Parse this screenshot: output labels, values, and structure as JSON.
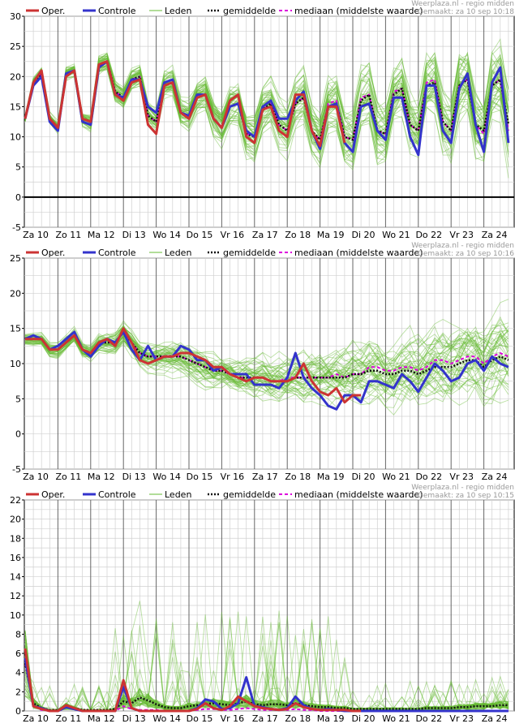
{
  "legend": {
    "oper": "Oper.",
    "controle": "Controle",
    "leden": "Leden",
    "gemiddelde": "gemiddelde",
    "mediaan": "mediaan (middelste waarde)"
  },
  "colors": {
    "oper": "#cc3333",
    "controle": "#3333cc",
    "leden": "#66bb33",
    "gemiddelde": "#111111",
    "mediaan": "#dd00dd",
    "grid": "#d0d0d0",
    "day_line": "#666666"
  },
  "day_labels": [
    "Za 10",
    "Zo 11",
    "Ma 12",
    "Di 13",
    "Wo 14",
    "Do 15",
    "Vr 16",
    "Za 17",
    "Zo 18",
    "Ma 19",
    "Di 20",
    "Wo 21",
    "Do 22",
    "Vr 23",
    "Za 24"
  ],
  "chart_data": [
    {
      "type": "line",
      "credit": "Weerplaza.nl - regio midden",
      "made": "Gemaakt: za 10 sep 10:18",
      "ylim": [
        -5,
        30
      ],
      "yticks": [
        -5,
        0,
        5,
        10,
        15,
        20,
        25,
        30
      ],
      "zero_line": true,
      "series": [
        {
          "key": "oper",
          "values": [
            13,
            19,
            21,
            13,
            11.5,
            20,
            21,
            13,
            12.5,
            22,
            22.5,
            17,
            16,
            19,
            19.5,
            12,
            10.5,
            18.5,
            19,
            14,
            13,
            16.5,
            17,
            13,
            11.5,
            16,
            17,
            10,
            9,
            14.5,
            15,
            11,
            10,
            17,
            17,
            11,
            8.5,
            15,
            15,
            9
          ]
        },
        {
          "key": "controle",
          "values": [
            13,
            18.5,
            20,
            12.5,
            11,
            20.5,
            21,
            12.5,
            12,
            21.5,
            22.5,
            17,
            16.5,
            19.5,
            19.5,
            15,
            14,
            19,
            19.5,
            14,
            13.5,
            17,
            17,
            13,
            11.5,
            15,
            15.5,
            11,
            10,
            15,
            16,
            13,
            13,
            16,
            17.5,
            11,
            8,
            15,
            15.5,
            9,
            7.5,
            15,
            15.5,
            11,
            9.5,
            16.5,
            16.5,
            10,
            7,
            18.5,
            18.5,
            11,
            9,
            18,
            20.5,
            12,
            7.5,
            19,
            21.5,
            9
          ]
        },
        {
          "key": "gemiddelde",
          "values": [
            13,
            19,
            20.5,
            13,
            11.5,
            20.5,
            21,
            13,
            12.5,
            22,
            22.5,
            17.5,
            16.5,
            19.5,
            20,
            13.5,
            12.5,
            18.5,
            19,
            14,
            13.5,
            16.5,
            17,
            13,
            11.5,
            15,
            15.5,
            10.5,
            10,
            14.5,
            15.5,
            12,
            11,
            15.5,
            16.5,
            11,
            9.5,
            15,
            15.5,
            10,
            9.5,
            16,
            17,
            11,
            10.5,
            17,
            18,
            12,
            11,
            18.5,
            19,
            12.5,
            11,
            18.5,
            19.5,
            12,
            11,
            18.5,
            19.5,
            12
          ]
        },
        {
          "key": "mediaan",
          "values": [
            13,
            19,
            20.5,
            13,
            11.5,
            20.5,
            21,
            13,
            12.5,
            22,
            22.5,
            17.5,
            16.5,
            19.5,
            20,
            13.5,
            12.5,
            18.5,
            19,
            14,
            13.5,
            16.5,
            17,
            13,
            11.5,
            15,
            15.5,
            10.5,
            10,
            14.5,
            15.5,
            12,
            11,
            15.5,
            16.5,
            11,
            9.5,
            15.5,
            16,
            10,
            9.5,
            16.5,
            17,
            11,
            10.5,
            17.5,
            18,
            12,
            11,
            19,
            19.5,
            12.5,
            11,
            18.5,
            19.5,
            12,
            10.5,
            18.5,
            19.5,
            11
          ]
        }
      ]
    },
    {
      "type": "line",
      "credit": "Weerplaza.nl - regio midden",
      "made": "Gemaakt: za 10 sep 10:16",
      "ylim": [
        -5,
        25
      ],
      "yticks": [
        -5,
        0,
        5,
        10,
        15,
        20,
        25
      ],
      "zero_line": false,
      "series": [
        {
          "key": "oper",
          "values": [
            13.5,
            13.5,
            13.5,
            12,
            12,
            13,
            14,
            12,
            11.5,
            13,
            13.5,
            12.5,
            15,
            13,
            10.5,
            10,
            10.5,
            11,
            11,
            11.5,
            11.5,
            11,
            10.5,
            9.5,
            9.5,
            8.5,
            8,
            7.5,
            8,
            8,
            7.5,
            7.5,
            7.5,
            8,
            10,
            7.5,
            6,
            5.5,
            6.5,
            4.5,
            5.5,
            5.5
          ]
        },
        {
          "key": "controle",
          "values": [
            13.5,
            14,
            13.5,
            12,
            12.5,
            13.5,
            14.5,
            12,
            11,
            12.5,
            13.5,
            13,
            14.5,
            12,
            10.5,
            12.5,
            10.5,
            11,
            11,
            12.5,
            12,
            10.5,
            10.5,
            9,
            9.5,
            8.5,
            8.5,
            8.5,
            7,
            7,
            7,
            6.5,
            8,
            11.5,
            8,
            6.5,
            5.5,
            4,
            3.5,
            5.5,
            5.5,
            4.5,
            7.5,
            7.5,
            7,
            6.5,
            8.5,
            7.5,
            6,
            8,
            10,
            9,
            7.5,
            8,
            10,
            10.5,
            9,
            11,
            10,
            9.5
          ]
        },
        {
          "key": "gemiddelde",
          "values": [
            13.5,
            13.5,
            13.5,
            12,
            12,
            13,
            14,
            12,
            11.5,
            13,
            13,
            13,
            14.5,
            13,
            11.5,
            11,
            11,
            11,
            11,
            11,
            10.5,
            10,
            9.5,
            9,
            9,
            8.5,
            8,
            8,
            8,
            8,
            7.5,
            7.5,
            7.5,
            8,
            8,
            8,
            8,
            8,
            8,
            8,
            8.5,
            8.5,
            9,
            9,
            8.5,
            8.5,
            9,
            9,
            8.5,
            9,
            9.5,
            9.5,
            9.5,
            10,
            10.5,
            10.5,
            9.5,
            10.5,
            11,
            10.5
          ]
        },
        {
          "key": "mediaan",
          "values": [
            13.5,
            13.5,
            13.5,
            12,
            12,
            13,
            14,
            12,
            11.5,
            13,
            13,
            13,
            14.5,
            13,
            11.5,
            11,
            11,
            11,
            11,
            11,
            10.5,
            10,
            9.5,
            9,
            9,
            8.5,
            8,
            8,
            8,
            8,
            7.5,
            7.5,
            8,
            8,
            8,
            8,
            8,
            8,
            8.5,
            8,
            8.5,
            8.5,
            9.5,
            9.5,
            9,
            9,
            9.5,
            9.5,
            9,
            9.5,
            10.5,
            10.5,
            10,
            10.5,
            11,
            11,
            10,
            11,
            11.5,
            11
          ]
        }
      ]
    },
    {
      "type": "line",
      "credit": "Weerplaza.nl - regio midden",
      "made": "Gemaakt: za 10 sep 10:15",
      "ylim": [
        0,
        22
      ],
      "yticks": [
        0,
        2,
        4,
        6,
        8,
        10,
        12,
        14,
        16,
        18,
        20,
        22
      ],
      "zero_line": false,
      "series": [
        {
          "key": "oper",
          "values": [
            6.5,
            0.5,
            0.2,
            0,
            0,
            0.6,
            0.3,
            0,
            0,
            0,
            0,
            0,
            3.2,
            0.3,
            0,
            0,
            0,
            0,
            0,
            0,
            0,
            0.2,
            0.8,
            0.3,
            0.1,
            0.5,
            1.5,
            1,
            0.5,
            0.3,
            0.2,
            0.1,
            0.2,
            0.8,
            0.4,
            0.2,
            0.1,
            0.1,
            0.1,
            0.1,
            0,
            0
          ]
        },
        {
          "key": "controle",
          "values": [
            5.5,
            0.5,
            0.3,
            0,
            0,
            0.4,
            0.2,
            0,
            0,
            0,
            0,
            0,
            2.5,
            0.3,
            0,
            0,
            0,
            0,
            0,
            0,
            0,
            0.3,
            1.2,
            1,
            0.2,
            0.3,
            0.8,
            3.5,
            0.5,
            0.4,
            0.2,
            0.1,
            0.3,
            1.5,
            0.6,
            0.2,
            0.1,
            0.2,
            0.1,
            0,
            0,
            0,
            0,
            0,
            0,
            0,
            0,
            0,
            0,
            0,
            0,
            0,
            0,
            0,
            0,
            0,
            0,
            0,
            0,
            0
          ]
        },
        {
          "key": "gemiddelde",
          "values": [
            5,
            0.8,
            0.3,
            0.1,
            0.1,
            0.5,
            0.3,
            0.1,
            0.1,
            0.1,
            0.1,
            0.2,
            1,
            0.8,
            1.4,
            1.1,
            0.7,
            0.4,
            0.3,
            0.3,
            0.5,
            0.6,
            0.7,
            0.8,
            0.7,
            0.6,
            0.8,
            1,
            0.7,
            0.6,
            0.7,
            0.7,
            0.6,
            0.8,
            0.6,
            0.5,
            0.4,
            0.4,
            0.3,
            0.3,
            0.2,
            0.2,
            0.2,
            0.2,
            0.2,
            0.2,
            0.2,
            0.2,
            0.2,
            0.3,
            0.3,
            0.3,
            0.3,
            0.4,
            0.4,
            0.5,
            0.5,
            0.5,
            0.6,
            0.6
          ]
        },
        {
          "key": "mediaan",
          "values": [
            5,
            0.5,
            0.1,
            0,
            0,
            0.4,
            0.2,
            0,
            0,
            0,
            0,
            0,
            0.5,
            0.2,
            0.1,
            0.1,
            0.1,
            0,
            0,
            0,
            0,
            0.1,
            0.2,
            0.2,
            0.1,
            0.1,
            0.2,
            0.3,
            0.2,
            0.1,
            0.1,
            0.1,
            0.1,
            0.2,
            0.1,
            0.1,
            0,
            0,
            0,
            0,
            0,
            0,
            0,
            0,
            0,
            0,
            0,
            0,
            0,
            0,
            0,
            0,
            0,
            0,
            0,
            0,
            0,
            0,
            0,
            0
          ]
        }
      ]
    }
  ]
}
